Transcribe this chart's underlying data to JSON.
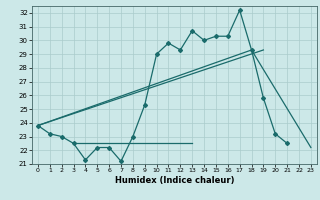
{
  "xlabel": "Humidex (Indice chaleur)",
  "bg_color": "#cce8e8",
  "grid_color": "#aacccc",
  "line_color": "#1a6b6b",
  "x_values": [
    0,
    1,
    2,
    3,
    4,
    5,
    6,
    7,
    8,
    9,
    10,
    11,
    12,
    13,
    14,
    15,
    16,
    17,
    18,
    19,
    20,
    21,
    22,
    23
  ],
  "y_main": [
    23.8,
    23.2,
    23.0,
    22.5,
    21.3,
    22.2,
    22.2,
    21.2,
    23.0,
    25.3,
    29.0,
    29.8,
    29.3,
    30.7,
    30.0,
    30.3,
    30.3,
    32.2,
    29.3,
    25.8,
    23.2,
    22.5,
    null,
    null
  ],
  "line1_x": [
    0,
    18,
    23
  ],
  "line1_y": [
    23.8,
    29.3,
    22.2
  ],
  "line2_x": [
    0,
    19
  ],
  "line2_y": [
    23.8,
    29.3
  ],
  "hline_x": [
    3,
    13
  ],
  "hline_y": [
    22.5,
    22.5
  ],
  "xlim": [
    -0.5,
    23.5
  ],
  "ylim": [
    21,
    32.5
  ],
  "yticks": [
    21,
    22,
    23,
    24,
    25,
    26,
    27,
    28,
    29,
    30,
    31,
    32
  ],
  "xticks": [
    0,
    1,
    2,
    3,
    4,
    5,
    6,
    7,
    8,
    9,
    10,
    11,
    12,
    13,
    14,
    15,
    16,
    17,
    18,
    19,
    20,
    21,
    22,
    23
  ]
}
